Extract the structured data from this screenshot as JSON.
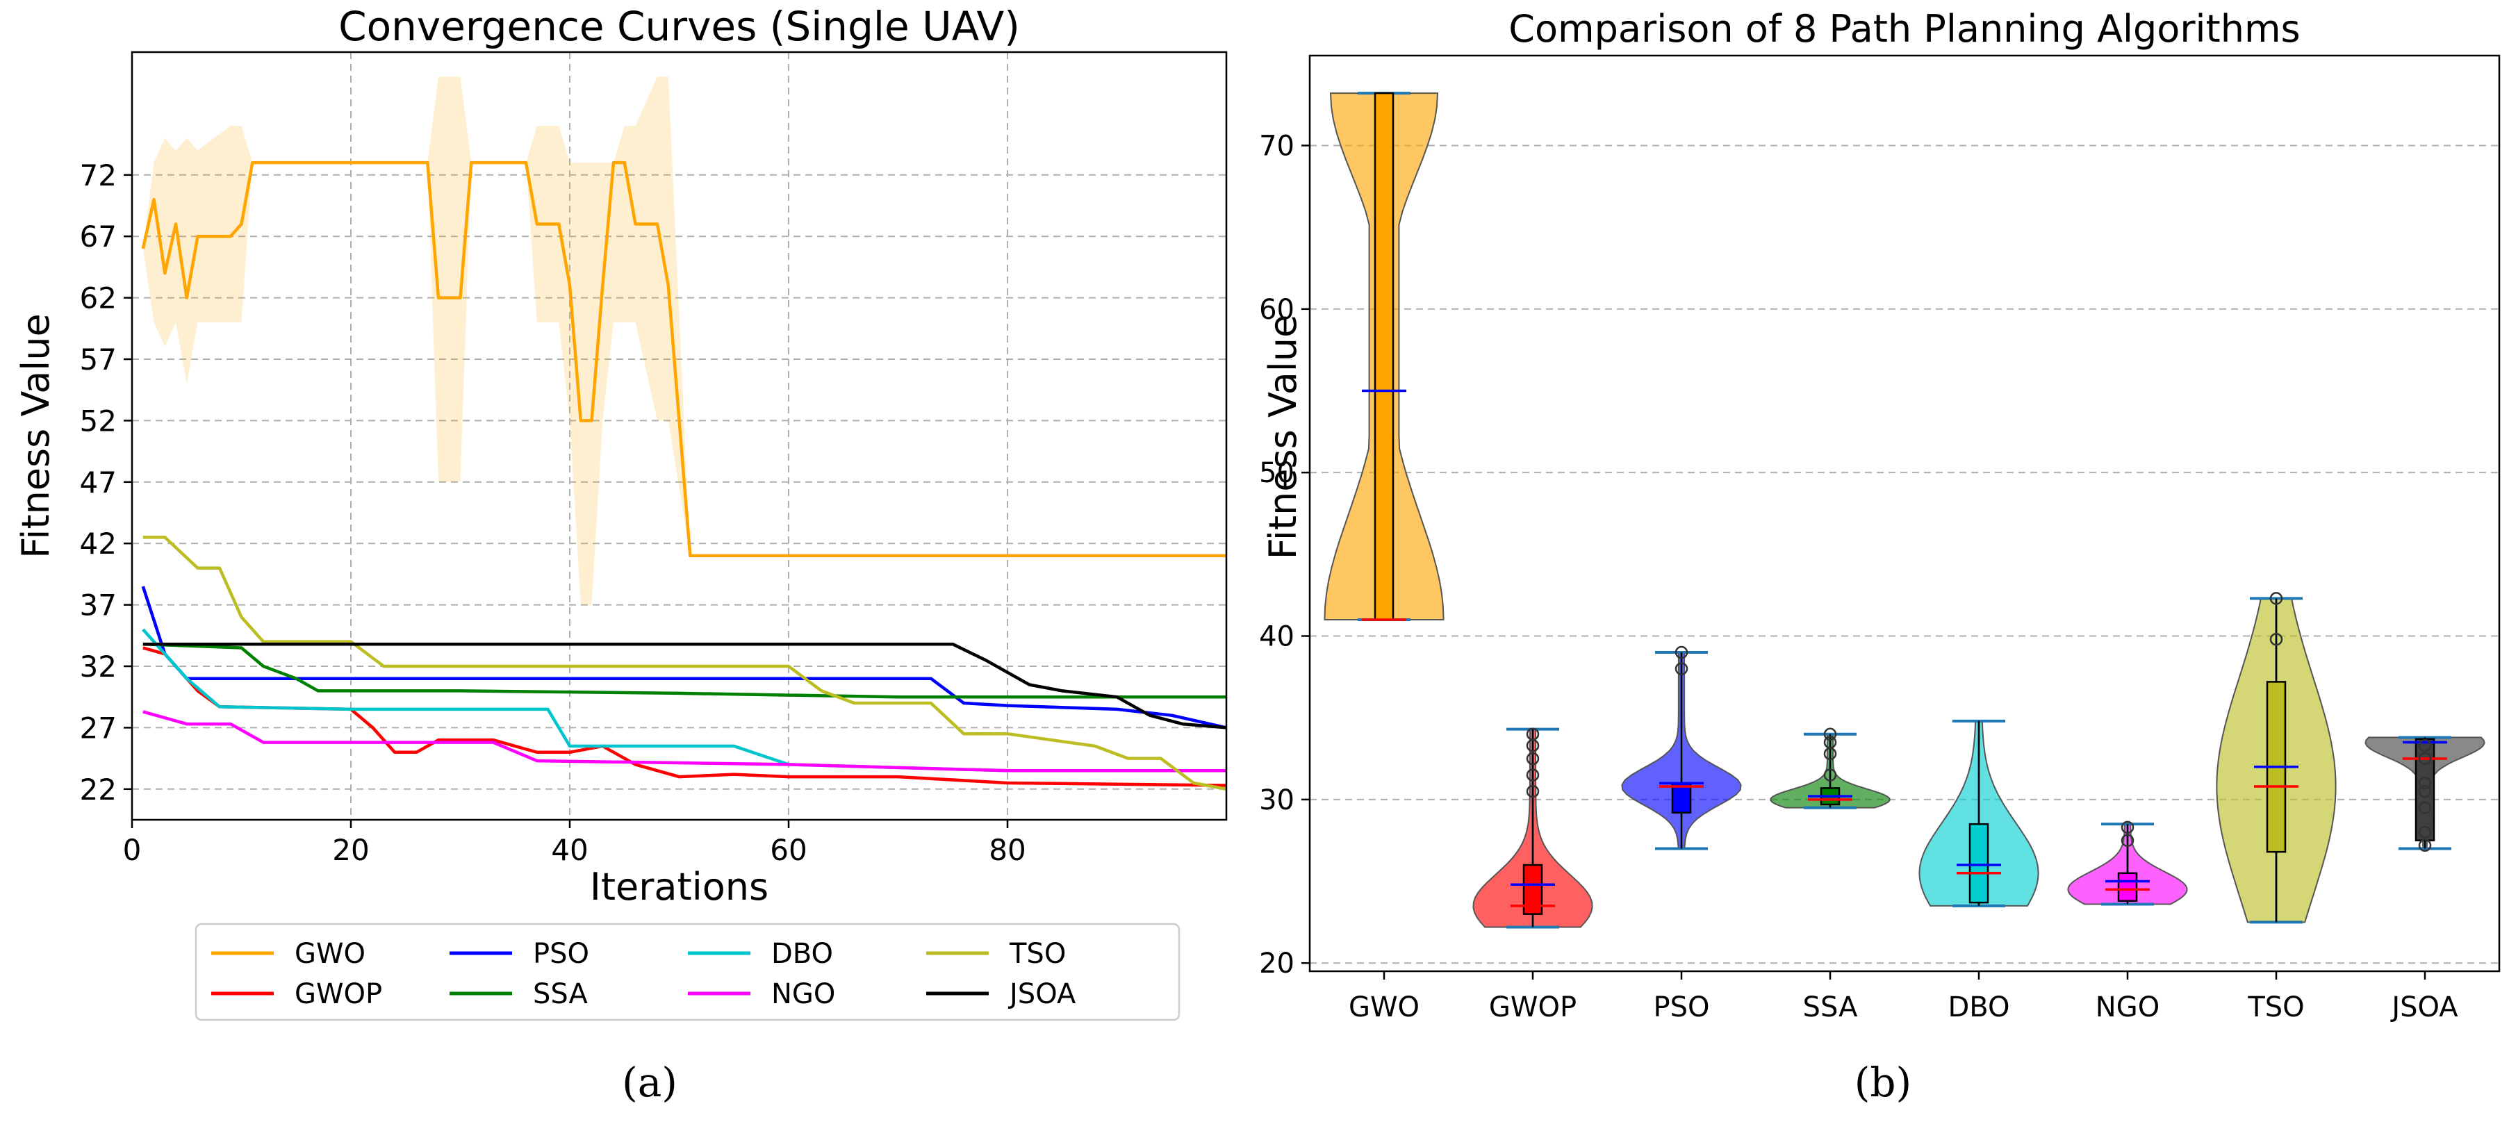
{
  "chart_data": [
    {
      "type": "line",
      "title": "Convergence Curves (Single UAV)",
      "xlabel": "Iterations",
      "ylabel": "Fitness Value",
      "xlim": [
        0,
        100
      ],
      "ylim": [
        19.5,
        82
      ],
      "xticks": [
        "0",
        "20",
        "40",
        "60",
        "80"
      ],
      "yticks": [
        "22",
        "27",
        "32",
        "37",
        "42",
        "47",
        "52",
        "57",
        "62",
        "67",
        "72"
      ],
      "grid": true,
      "legend_position": "below",
      "caption": "(a)",
      "series": [
        {
          "name": "GWO",
          "color": "#ffa500",
          "points": [
            [
              1,
              66
            ],
            [
              2,
              70
            ],
            [
              3,
              64
            ],
            [
              4,
              68
            ],
            [
              5,
              62
            ],
            [
              6,
              67
            ],
            [
              9,
              67
            ],
            [
              10,
              68
            ],
            [
              11,
              73
            ],
            [
              27,
              73
            ],
            [
              28,
              62
            ],
            [
              30,
              62
            ],
            [
              31,
              73
            ],
            [
              36,
              73
            ],
            [
              37,
              68
            ],
            [
              39,
              68
            ],
            [
              40,
              63
            ],
            [
              41,
              52
            ],
            [
              42,
              52
            ],
            [
              43,
              63
            ],
            [
              44,
              73
            ],
            [
              45,
              73
            ],
            [
              46,
              68
            ],
            [
              48,
              68
            ],
            [
              49,
              63
            ],
            [
              51,
              41
            ],
            [
              100,
              41
            ]
          ],
          "band_upper": [
            [
              1,
              66
            ],
            [
              2,
              73
            ],
            [
              3,
              75
            ],
            [
              4,
              74
            ],
            [
              5,
              75
            ],
            [
              6,
              74
            ],
            [
              9,
              76
            ],
            [
              10,
              76
            ],
            [
              11,
              73
            ],
            [
              27,
              73
            ],
            [
              28,
              80
            ],
            [
              30,
              80
            ],
            [
              31,
              73
            ],
            [
              36,
              73
            ],
            [
              37,
              76
            ],
            [
              39,
              76
            ],
            [
              40,
              73
            ],
            [
              41,
              73
            ],
            [
              42,
              73
            ],
            [
              43,
              73
            ],
            [
              44,
              73
            ],
            [
              45,
              76
            ],
            [
              46,
              76
            ],
            [
              48,
              80
            ],
            [
              49,
              80
            ],
            [
              51,
              41
            ],
            [
              100,
              41
            ]
          ],
          "band_lower": [
            [
              1,
              66
            ],
            [
              2,
              60
            ],
            [
              3,
              58
            ],
            [
              4,
              60
            ],
            [
              5,
              55
            ],
            [
              6,
              60
            ],
            [
              9,
              60
            ],
            [
              10,
              60
            ],
            [
              11,
              73
            ],
            [
              27,
              73
            ],
            [
              28,
              47
            ],
            [
              30,
              47
            ],
            [
              31,
              73
            ],
            [
              36,
              73
            ],
            [
              37,
              60
            ],
            [
              39,
              60
            ],
            [
              40,
              52
            ],
            [
              41,
              37
            ],
            [
              42,
              37
            ],
            [
              43,
              52
            ],
            [
              44,
              60
            ],
            [
              45,
              60
            ],
            [
              46,
              60
            ],
            [
              48,
              52
            ],
            [
              49,
              52
            ],
            [
              51,
              41
            ],
            [
              100,
              41
            ]
          ]
        },
        {
          "name": "GWOP",
          "color": "#ff0000",
          "points": [
            [
              1,
              33.5
            ],
            [
              3,
              33
            ],
            [
              4,
              32
            ],
            [
              6,
              30
            ],
            [
              8,
              28.7
            ],
            [
              20,
              28.5
            ],
            [
              22,
              27
            ],
            [
              24,
              25
            ],
            [
              26,
              25
            ],
            [
              28,
              26
            ],
            [
              33,
              26
            ],
            [
              37,
              25
            ],
            [
              40,
              25
            ],
            [
              43,
              25.5
            ],
            [
              46,
              24
            ],
            [
              50,
              23
            ],
            [
              55,
              23.2
            ],
            [
              60,
              23
            ],
            [
              70,
              23
            ],
            [
              80,
              22.5
            ],
            [
              90,
              22.4
            ],
            [
              100,
              22.3
            ]
          ]
        },
        {
          "name": "PSO",
          "color": "#0000ff",
          "points": [
            [
              1,
              38.5
            ],
            [
              3,
              33
            ],
            [
              5,
              31
            ],
            [
              10,
              31
            ],
            [
              20,
              31
            ],
            [
              40,
              31
            ],
            [
              73,
              31
            ],
            [
              76,
              29
            ],
            [
              80,
              28.8
            ],
            [
              90,
              28.5
            ],
            [
              95,
              28
            ],
            [
              100,
              27
            ]
          ]
        },
        {
          "name": "SSA",
          "color": "#008000",
          "points": [
            [
              1,
              33.8
            ],
            [
              10,
              33.5
            ],
            [
              12,
              32
            ],
            [
              15,
              31
            ],
            [
              17,
              30
            ],
            [
              30,
              30
            ],
            [
              50,
              29.8
            ],
            [
              70,
              29.5
            ],
            [
              100,
              29.5
            ]
          ]
        },
        {
          "name": "DBO",
          "color": "#00c5cd",
          "points": [
            [
              1,
              35
            ],
            [
              3,
              33
            ],
            [
              5,
              31
            ],
            [
              8,
              28.7
            ],
            [
              20,
              28.5
            ],
            [
              38,
              28.5
            ],
            [
              40,
              25.5
            ],
            [
              55,
              25.5
            ],
            [
              60,
              24
            ],
            [
              80,
              23.5
            ],
            [
              100,
              23.5
            ]
          ]
        },
        {
          "name": "NGO",
          "color": "#ff00ff",
          "points": [
            [
              1,
              28.3
            ],
            [
              5,
              27.3
            ],
            [
              9,
              27.3
            ],
            [
              12,
              25.8
            ],
            [
              20,
              25.8
            ],
            [
              33,
              25.8
            ],
            [
              37,
              24.3
            ],
            [
              60,
              24
            ],
            [
              80,
              23.5
            ],
            [
              100,
              23.5
            ]
          ]
        },
        {
          "name": "TSO",
          "color": "#bcbd22",
          "points": [
            [
              1,
              42.5
            ],
            [
              3,
              42.5
            ],
            [
              6,
              40
            ],
            [
              8,
              40
            ],
            [
              10,
              36
            ],
            [
              12,
              34
            ],
            [
              20,
              34
            ],
            [
              23,
              32
            ],
            [
              30,
              32
            ],
            [
              60,
              32
            ],
            [
              63,
              30
            ],
            [
              66,
              29
            ],
            [
              73,
              29
            ],
            [
              76,
              26.5
            ],
            [
              80,
              26.5
            ],
            [
              88,
              25.5
            ],
            [
              91,
              24.5
            ],
            [
              94,
              24.5
            ],
            [
              97,
              22.5
            ],
            [
              100,
              22
            ]
          ]
        },
        {
          "name": "JSOA",
          "color": "#000000",
          "points": [
            [
              1,
              33.8
            ],
            [
              75,
              33.8
            ],
            [
              78,
              32.5
            ],
            [
              82,
              30.5
            ],
            [
              85,
              30
            ],
            [
              90,
              29.5
            ],
            [
              93,
              28
            ],
            [
              96,
              27.3
            ],
            [
              100,
              27
            ]
          ]
        }
      ]
    },
    {
      "type": "violin",
      "title": "Comparison of 8 Path Planning Algorithms",
      "xlabel": "",
      "ylabel": "Fitness Value",
      "ylim": [
        19.5,
        75.5
      ],
      "yticks": [
        "20",
        "30",
        "40",
        "50",
        "60",
        "70"
      ],
      "grid": true,
      "caption": "(b)",
      "categories": [
        "GWO",
        "GWOP",
        "PSO",
        "SSA",
        "DBO",
        "NGO",
        "TSO",
        "JSOA"
      ],
      "series": [
        {
          "name": "GWO",
          "color": "#ffa500",
          "min": 41,
          "q1": 41,
          "median": 41,
          "mean": 55,
          "q3": 73.2,
          "max": 73.2,
          "outliers": []
        },
        {
          "name": "GWOP",
          "color": "#ff0000",
          "min": 22.2,
          "q1": 23,
          "median": 23.5,
          "mean": 24.8,
          "q3": 26,
          "max": 34.3,
          "outliers": [
            30.5,
            31.5,
            32.5,
            33.3,
            34
          ]
        },
        {
          "name": "PSO",
          "color": "#0000ff",
          "min": 27,
          "q1": 29.2,
          "median": 30.8,
          "mean": 31,
          "q3": 31,
          "max": 39,
          "outliers": [
            38,
            39
          ]
        },
        {
          "name": "SSA",
          "color": "#008000",
          "min": 29.5,
          "q1": 29.7,
          "median": 30,
          "mean": 30.2,
          "q3": 30.7,
          "max": 34,
          "outliers": [
            31.5,
            32.8,
            33.5,
            34
          ]
        },
        {
          "name": "DBO",
          "color": "#00ced1",
          "min": 23.5,
          "q1": 23.7,
          "median": 25.5,
          "mean": 26,
          "q3": 28.5,
          "max": 34.8,
          "outliers": []
        },
        {
          "name": "NGO",
          "color": "#ff00ff",
          "min": 23.6,
          "q1": 23.8,
          "median": 24.5,
          "mean": 25,
          "q3": 25.5,
          "max": 28.5,
          "outliers": [
            27.5,
            28.3
          ]
        },
        {
          "name": "TSO",
          "color": "#bcbd22",
          "min": 22.5,
          "q1": 26.8,
          "median": 30.8,
          "mean": 32,
          "q3": 37.2,
          "max": 42.3,
          "outliers": [
            39.8,
            42.3
          ]
        },
        {
          "name": "JSOA",
          "color": "#404040",
          "min": 27,
          "q1": 27.5,
          "median": 32.5,
          "mean": 33.5,
          "q3": 33.7,
          "max": 33.8,
          "outliers": [
            27.2,
            28,
            29.5,
            30.5,
            31,
            32.5,
            33.3
          ]
        }
      ]
    }
  ]
}
